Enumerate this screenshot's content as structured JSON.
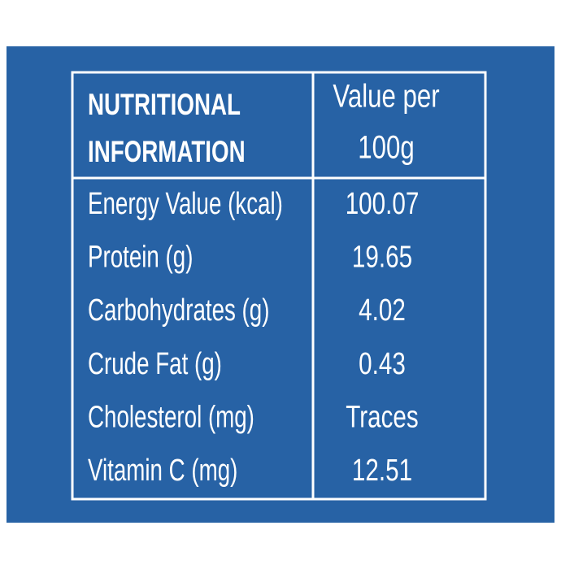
{
  "table": {
    "header": [
      [
        "NUTRITIONAL",
        "INFORMATION"
      ],
      [
        "Value per",
        "100g"
      ]
    ],
    "rows": [
      [
        "Energy Value (kcal)",
        "100.07"
      ],
      [
        "Protein (g)",
        "19.65"
      ],
      [
        "Carbohydrates (g)",
        "4.02"
      ],
      [
        "Crude Fat (g)",
        "0.43"
      ],
      [
        "Cholesterol (mg)",
        "Traces"
      ],
      [
        "Vitamin C (mg)",
        "12.51"
      ]
    ]
  }
}
